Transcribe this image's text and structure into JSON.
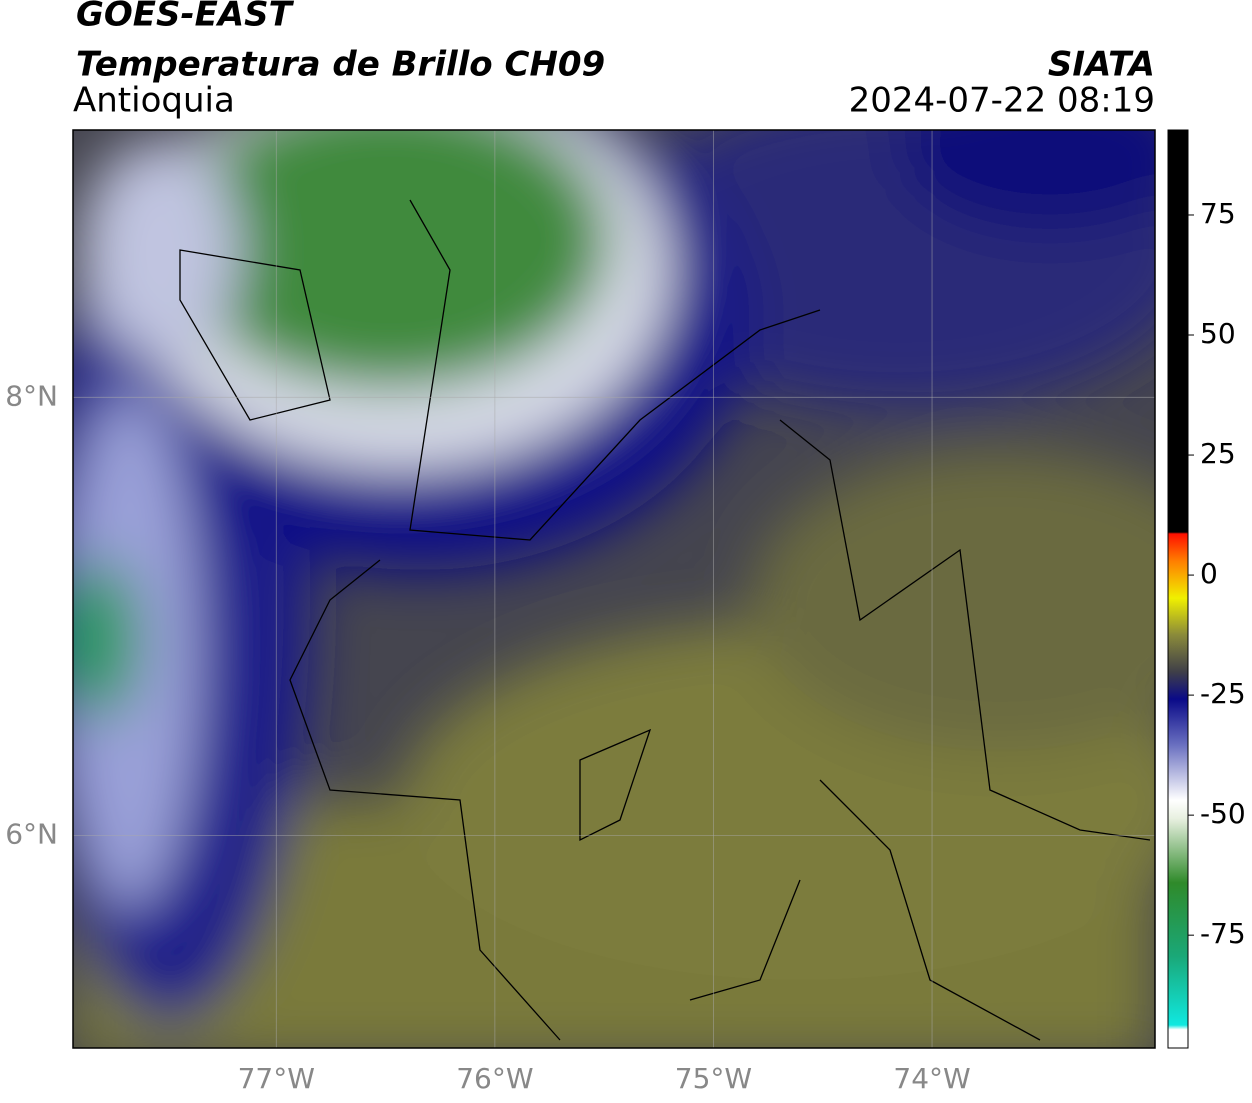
{
  "header": {
    "title": "GOES-EAST",
    "subtitle": "Temperatura de Brillo CH09",
    "region": "Antioquia",
    "source": "SIATA",
    "datetime": "2024-07-22 08:19"
  },
  "map": {
    "xlim": [
      -77.93,
      -72.98
    ],
    "ylim": [
      5.03,
      9.22
    ],
    "xticks": [
      {
        "value": -77,
        "label": "77°W"
      },
      {
        "value": -76,
        "label": "76°W"
      },
      {
        "value": -75,
        "label": "75°W"
      },
      {
        "value": -74,
        "label": "74°W"
      }
    ],
    "yticks": [
      {
        "value": 8,
        "label": "8°N"
      },
      {
        "value": 6,
        "label": "6°N"
      }
    ],
    "grid": true
  },
  "colorbar": {
    "lim": [
      -98.5,
      92.7
    ],
    "ticks": [
      75,
      50,
      25,
      0,
      -25,
      -50,
      -75
    ]
  }
}
